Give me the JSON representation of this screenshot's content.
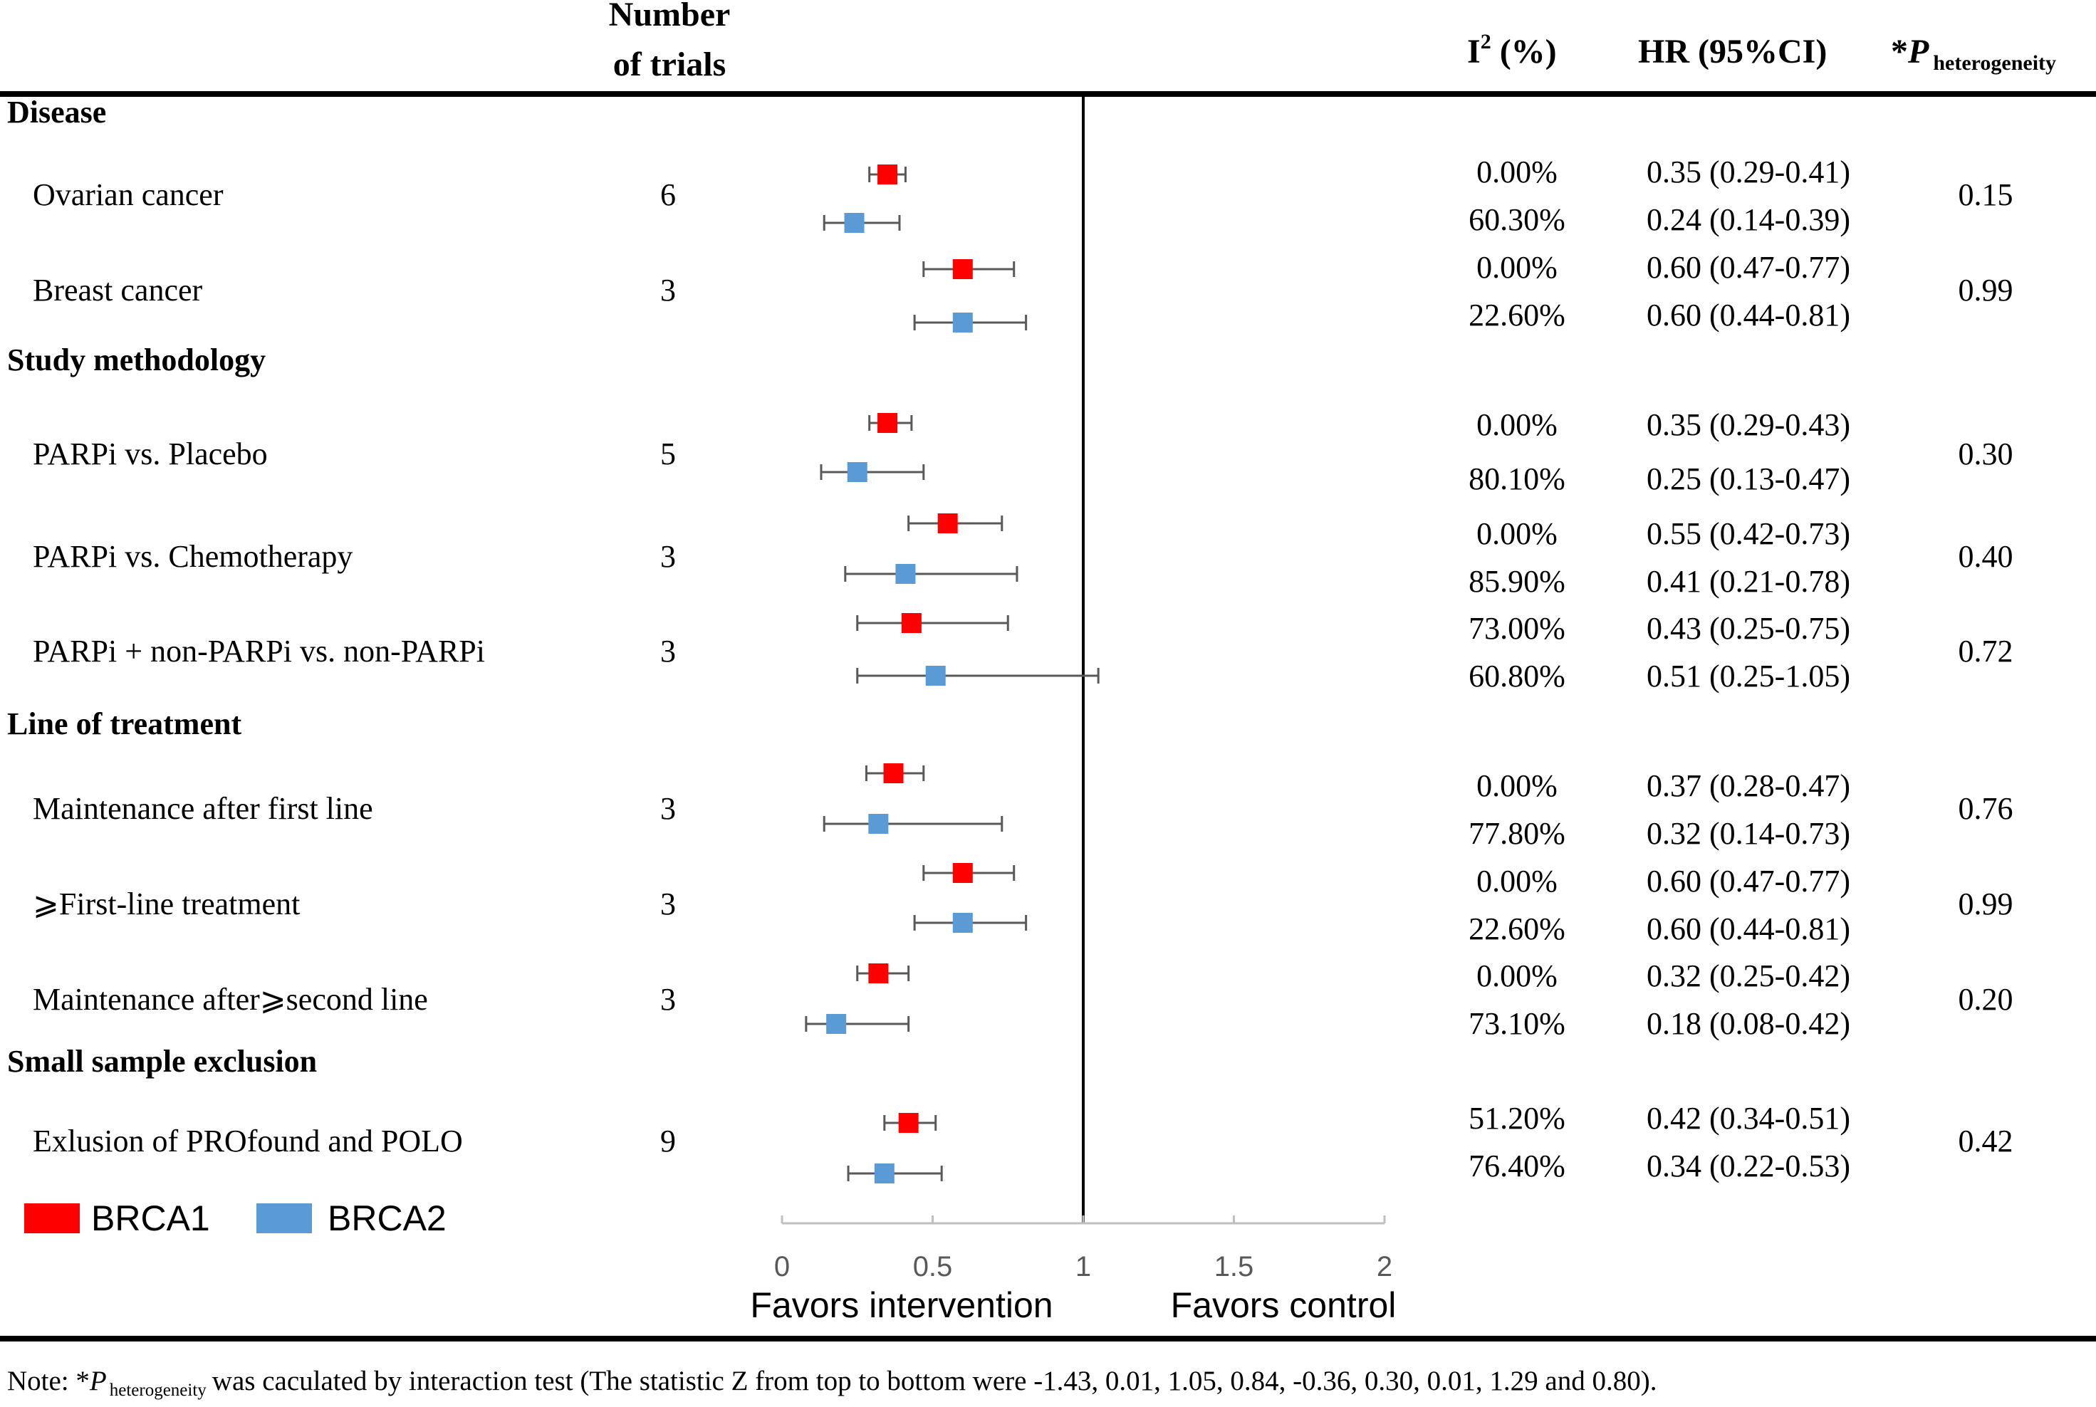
{
  "header": {
    "trials_line1": "Number",
    "trials_line2": "of trials",
    "i2_main": "I",
    "i2_sup": "2",
    "i2_suffix": " (%)",
    "hr": "HR (95%CI)",
    "p_star": "*",
    "p_letter": "P",
    "p_sub": "heterogeneity"
  },
  "legend": {
    "brca1": "BRCA1",
    "brca2": "BRCA2"
  },
  "axis": {
    "ticks": [
      "0",
      "0.5",
      "1",
      "1.5",
      "2"
    ],
    "favors_left": "Favors intervention",
    "favors_right": "Favors control"
  },
  "note": {
    "prefix": "Note: *",
    "p_letter": "P",
    "p_sub": "heterogeneity",
    "text": "was caculated by interaction test (The statistic Z from top to bottom were -1.43, 0.01, 1.05,  0.84, -0.36, 0.30, 0.01, 1.29 and 0.80)."
  },
  "colors": {
    "brca1": "#ff0000",
    "brca2": "#5b9bd5",
    "whisker": "#595959",
    "axis": "#bfbfbf",
    "ref_line": "#000000"
  },
  "chart_data": {
    "type": "forest",
    "xlim": [
      0,
      2
    ],
    "ticks": [
      0,
      0.5,
      1,
      1.5,
      2
    ],
    "reference": 1,
    "xlabel_left": "Favors intervention",
    "xlabel_right": "Favors control",
    "series": [
      "BRCA1",
      "BRCA2"
    ],
    "groups": [
      {
        "heading": "Disease",
        "rows": [
          {
            "label": "Ovarian cancer",
            "trials": "6",
            "p": "0.15",
            "brca1": {
              "hr": 0.35,
              "lo": 0.29,
              "hi": 0.41,
              "i2": "0.00%",
              "ci_text": "0.35 (0.29-0.41)"
            },
            "brca2": {
              "hr": 0.24,
              "lo": 0.14,
              "hi": 0.39,
              "i2": "60.30%",
              "ci_text": "0.24 (0.14-0.39)"
            }
          },
          {
            "label": "Breast cancer",
            "trials": "3",
            "p": "0.99",
            "brca1": {
              "hr": 0.6,
              "lo": 0.47,
              "hi": 0.77,
              "i2": "0.00%",
              "ci_text": "0.60 (0.47-0.77)"
            },
            "brca2": {
              "hr": 0.6,
              "lo": 0.44,
              "hi": 0.81,
              "i2": "22.60%",
              "ci_text": "0.60 (0.44-0.81)"
            }
          }
        ]
      },
      {
        "heading": "Study methodology",
        "rows": [
          {
            "label": "PARPi vs. Placebo",
            "trials": "5",
            "p": "0.30",
            "brca1": {
              "hr": 0.35,
              "lo": 0.29,
              "hi": 0.43,
              "i2": "0.00%",
              "ci_text": "0.35 (0.29-0.43)"
            },
            "brca2": {
              "hr": 0.25,
              "lo": 0.13,
              "hi": 0.47,
              "i2": "80.10%",
              "ci_text": "0.25 (0.13-0.47)"
            }
          },
          {
            "label": "PARPi vs. Chemotherapy",
            "trials": "3",
            "p": "0.40",
            "brca1": {
              "hr": 0.55,
              "lo": 0.42,
              "hi": 0.73,
              "i2": "0.00%",
              "ci_text": "0.55 (0.42-0.73)"
            },
            "brca2": {
              "hr": 0.41,
              "lo": 0.21,
              "hi": 0.78,
              "i2": "85.90%",
              "ci_text": "0.41 (0.21-0.78)"
            }
          },
          {
            "label": "PARPi + non-PARPi vs. non-PARPi",
            "trials": "3",
            "p": "0.72",
            "brca1": {
              "hr": 0.43,
              "lo": 0.25,
              "hi": 0.75,
              "i2": "73.00%",
              "ci_text": "0.43 (0.25-0.75)"
            },
            "brca2": {
              "hr": 0.51,
              "lo": 0.25,
              "hi": 1.05,
              "i2": "60.80%",
              "ci_text": "0.51 (0.25-1.05)"
            }
          }
        ]
      },
      {
        "heading": "Line of treatment",
        "rows": [
          {
            "label": "Maintenance after first line",
            "trials": "3",
            "p": "0.76",
            "brca1": {
              "hr": 0.37,
              "lo": 0.28,
              "hi": 0.47,
              "i2": "0.00%",
              "ci_text": "0.37 (0.28-0.47)"
            },
            "brca2": {
              "hr": 0.32,
              "lo": 0.14,
              "hi": 0.73,
              "i2": "77.80%",
              "ci_text": "0.32 (0.14-0.73)"
            }
          },
          {
            "label": "⩾First-line treatment",
            "trials": "3",
            "p": "0.99",
            "brca1": {
              "hr": 0.6,
              "lo": 0.47,
              "hi": 0.77,
              "i2": "0.00%",
              "ci_text": "0.60 (0.47-0.77)"
            },
            "brca2": {
              "hr": 0.6,
              "lo": 0.44,
              "hi": 0.81,
              "i2": "22.60%",
              "ci_text": "0.60 (0.44-0.81)"
            }
          },
          {
            "label": "Maintenance after⩾second line",
            "trials": "3",
            "p": "0.20",
            "brca1": {
              "hr": 0.32,
              "lo": 0.25,
              "hi": 0.42,
              "i2": "0.00%",
              "ci_text": "0.32 (0.25-0.42)"
            },
            "brca2": {
              "hr": 0.18,
              "lo": 0.08,
              "hi": 0.42,
              "i2": "73.10%",
              "ci_text": "0.18 (0.08-0.42)"
            }
          }
        ]
      },
      {
        "heading": "Small sample exclusion",
        "rows": [
          {
            "label": "Exlusion of PROfound and POLO",
            "trials": "9",
            "p": "0.42",
            "brca1": {
              "hr": 0.42,
              "lo": 0.34,
              "hi": 0.51,
              "i2": "51.20%",
              "ci_text": "0.42 (0.34-0.51)"
            },
            "brca2": {
              "hr": 0.34,
              "lo": 0.22,
              "hi": 0.53,
              "i2": "76.40%",
              "ci_text": "0.34 (0.22-0.53)"
            }
          }
        ]
      }
    ]
  }
}
